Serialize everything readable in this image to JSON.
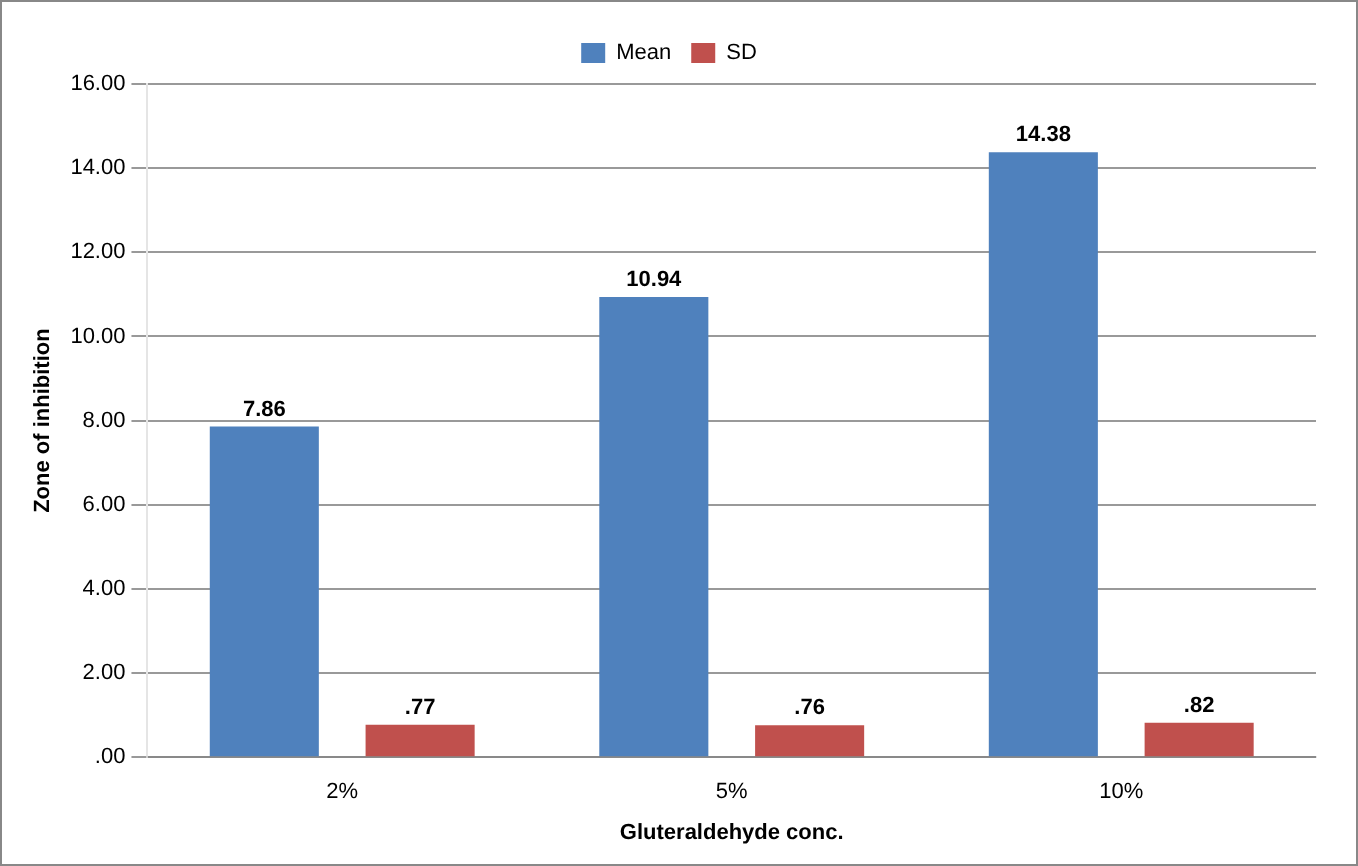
{
  "chart_data": {
    "type": "bar",
    "xlabel": "Gluteraldehyde conc.",
    "ylabel": "Zone of inhibition",
    "categories": [
      "2%",
      "5%",
      "10%"
    ],
    "series": [
      {
        "name": "Mean",
        "color": "#4f81bd",
        "values": [
          7.86,
          10.94,
          14.38
        ],
        "value_labels": [
          "7.86",
          "10.94",
          "14.38"
        ]
      },
      {
        "name": "SD",
        "color": "#c0504d",
        "values": [
          0.77,
          0.76,
          0.82
        ],
        "value_labels": [
          ".77",
          ".76",
          ".82"
        ]
      }
    ],
    "ylim": [
      0,
      16
    ],
    "yticks": [
      {
        "value": 0,
        "label": ".00"
      },
      {
        "value": 2,
        "label": "2.00"
      },
      {
        "value": 4,
        "label": "4.00"
      },
      {
        "value": 6,
        "label": "6.00"
      },
      {
        "value": 8,
        "label": "8.00"
      },
      {
        "value": 10,
        "label": "10.00"
      },
      {
        "value": 12,
        "label": "12.00"
      },
      {
        "value": 14,
        "label": "14.00"
      },
      {
        "value": 16,
        "label": "16.00"
      }
    ],
    "grid": "y",
    "legend": "top"
  }
}
